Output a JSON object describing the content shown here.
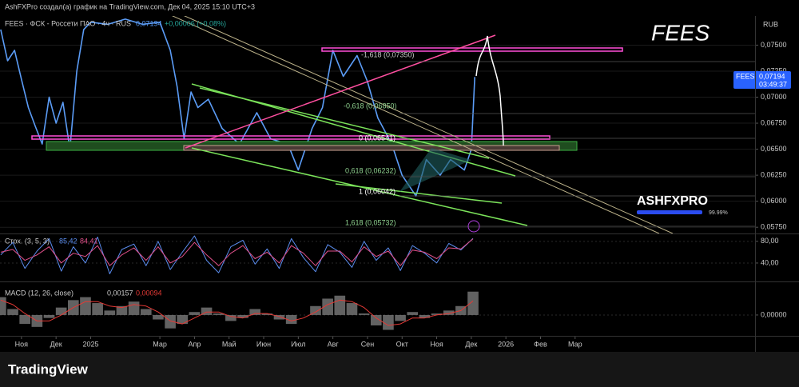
{
  "header": {
    "text": "AshFXPro создал(а) график на TradingView.com, Дек 04, 2025 15:10 UTC+3"
  },
  "chart_data": [
    {
      "type": "line",
      "title": "FEES",
      "subtitle": "FEES · ФСК - Россети ПАО · 4ч · RUS",
      "last": "0,07194",
      "change": "+0,00006 (+0,08%)",
      "currency": "RUB",
      "price_tag": {
        "countdown": "03:49:37",
        "price": "0,07194"
      },
      "fib_labels": [
        "-1,618 (0,07350)",
        "-0,618 (0,06850)",
        "0 (0,06541)",
        "0,618 (0,06232)",
        "1 (0,06042)",
        "1,618 (0,05732)"
      ],
      "watermark": {
        "logo": "ASHFXPRO",
        "percent": "99.99%"
      },
      "x": [
        -0.6,
        -0.4,
        -0.2,
        0,
        0.2,
        0.4,
        0.6,
        0.8,
        1.0,
        1.2,
        1.4,
        1.6,
        1.8,
        2.0,
        2.5,
        3.0,
        3.5,
        4.0,
        4.3,
        4.5,
        4.7,
        4.9,
        5.1,
        5.4,
        5.8,
        6.3,
        6.8,
        7.2,
        7.7,
        8.0,
        8.4,
        8.7,
        9.0,
        9.3,
        9.7,
        10.0,
        10.3,
        10.7,
        11.0,
        11.4,
        11.7,
        12.1,
        12.4,
        12.8,
        13.0,
        13.1
      ],
      "series": [
        {
          "name": "FEES",
          "color": "#5b9cf6",
          "values": [
            0.0765,
            0.0735,
            0.0745,
            0.0717,
            0.069,
            0.0672,
            0.0655,
            0.07,
            0.0675,
            0.0695,
            0.065,
            0.0725,
            0.0765,
            0.0772,
            0.077,
            0.0775,
            0.077,
            0.0772,
            0.0745,
            0.071,
            0.066,
            0.0705,
            0.069,
            0.0698,
            0.067,
            0.0655,
            0.0685,
            0.066,
            0.0655,
            0.063,
            0.067,
            0.069,
            0.0745,
            0.072,
            0.074,
            0.0715,
            0.068,
            0.0655,
            0.0625,
            0.0605,
            0.064,
            0.0625,
            0.064,
            0.063,
            0.065,
            0.07194
          ]
        }
      ],
      "xlim": [
        -0.62,
        21.2
      ],
      "xticks": [
        {
          "value": 0,
          "label": "Ноя"
        },
        {
          "value": 1,
          "label": "Дек"
        },
        {
          "value": 2,
          "label": "2025"
        },
        {
          "value": 4,
          "label": "Мар"
        },
        {
          "value": 5,
          "label": "Апр"
        },
        {
          "value": 6,
          "label": "Май"
        },
        {
          "value": 7,
          "label": "Июн"
        },
        {
          "value": 8,
          "label": "Июл"
        },
        {
          "value": 9,
          "label": "Авг"
        },
        {
          "value": 10,
          "label": "Сен"
        },
        {
          "value": 11,
          "label": "Окт"
        },
        {
          "value": 12,
          "label": "Ноя"
        },
        {
          "value": 13,
          "label": "Дек"
        },
        {
          "value": 14,
          "label": "2026"
        },
        {
          "value": 15,
          "label": "Фев"
        },
        {
          "value": 16,
          "label": "Мар"
        }
      ],
      "ylim": [
        0.0569,
        0.0778
      ],
      "yticks": [
        {
          "value": 0.0575,
          "label": "0,05750"
        },
        {
          "value": 0.06,
          "label": "0,06000"
        },
        {
          "value": 0.0625,
          "label": "0,06250"
        },
        {
          "value": 0.065,
          "label": "0,06500"
        },
        {
          "value": 0.0675,
          "label": "0,06750"
        },
        {
          "value": 0.07,
          "label": "0,07000"
        },
        {
          "value": 0.0725,
          "label": "0,07250"
        },
        {
          "value": 0.075,
          "label": "0,07500"
        }
      ],
      "grid": true
    },
    {
      "type": "line",
      "title": "Стох. (3, 5, 3)",
      "legend_values": [
        "85,42",
        "84,41"
      ],
      "x": [
        -0.6,
        -0.25,
        0.1,
        0.45,
        0.8,
        1.15,
        1.5,
        1.85,
        2.2,
        2.55,
        2.9,
        3.25,
        3.6,
        3.95,
        4.3,
        4.65,
        5,
        5.35,
        5.7,
        6.05,
        6.4,
        6.75,
        7.1,
        7.45,
        7.8,
        8.15,
        8.5,
        8.85,
        9.2,
        9.55,
        9.9,
        10.25,
        10.6,
        10.95,
        11.3,
        11.65,
        12,
        12.35,
        12.7,
        13.05
      ],
      "series": [
        {
          "color": "#5b8def",
          "values": [
            55,
            78,
            30,
            62,
            85,
            25,
            70,
            40,
            88,
            20,
            65,
            75,
            35,
            80,
            28,
            60,
            90,
            45,
            22,
            70,
            82,
            38,
            66,
            30,
            85,
            50,
            24,
            74,
            60,
            32,
            80,
            45,
            68,
            26,
            72,
            58,
            40,
            76,
            64,
            85.42
          ]
        },
        {
          "color": "#e0508a",
          "values": [
            60,
            65,
            45,
            55,
            70,
            40,
            58,
            52,
            72,
            35,
            55,
            68,
            45,
            70,
            40,
            52,
            78,
            55,
            35,
            58,
            72,
            48,
            60,
            40,
            72,
            58,
            35,
            62,
            62,
            42,
            70,
            52,
            62,
            35,
            64,
            60,
            48,
            68,
            66,
            84.41
          ]
        }
      ],
      "xlim": [
        -0.62,
        21.2
      ],
      "ylim": [
        6,
        93
      ],
      "yticks": [
        {
          "value": 80,
          "label": "80,00"
        },
        {
          "value": 40,
          "label": "40,00"
        }
      ]
    },
    {
      "type": "line",
      "title": "MACD (12, 26, close)",
      "legend_values": [
        "0,00157",
        "0,00094"
      ],
      "x": [
        -0.6,
        -0.25,
        0.1,
        0.45,
        0.8,
        1.15,
        1.5,
        1.85,
        2.2,
        2.55,
        2.9,
        3.25,
        3.6,
        3.95,
        4.3,
        4.65,
        5,
        5.35,
        5.7,
        6.05,
        6.4,
        6.75,
        7.1,
        7.45,
        7.8,
        8.15,
        8.5,
        8.85,
        9.2,
        9.55,
        9.9,
        10.25,
        10.6,
        10.95,
        11.3,
        11.65,
        12,
        12.35,
        12.7,
        13.05
      ],
      "series": [
        {
          "color": "#8c8c8c",
          "style": "histogram",
          "values": [
            0.0012,
            0.0004,
            -0.0006,
            -0.0008,
            -0.0002,
            0.0005,
            0.001,
            0.0012,
            0.0008,
            0.0003,
            0.0006,
            0.0009,
            0.0004,
            -0.0003,
            -0.0009,
            -0.0006,
            0.0002,
            0.0005,
            0.0001,
            -0.0004,
            -0.0002,
            0.0004,
            0.0001,
            -0.0003,
            -0.0006,
            0.0,
            0.0006,
            0.0011,
            0.0013,
            0.0008,
            0.0001,
            -0.0007,
            -0.001,
            -0.0004,
            0.0002,
            -0.0002,
            0.0001,
            0.0003,
            0.0006,
            0.00157
          ]
        },
        {
          "color": "#e53935",
          "values": [
            0.001,
            0.0007,
            0.0001,
            -0.0004,
            -0.0004,
            0.0,
            0.0005,
            0.0009,
            0.0009,
            0.0006,
            0.0005,
            0.0007,
            0.0006,
            0.0002,
            -0.0004,
            -0.0006,
            -0.0002,
            0.0002,
            0.0002,
            -0.0001,
            -0.0002,
            0.0001,
            0.0001,
            -0.0001,
            -0.0004,
            -0.0002,
            0.0002,
            0.0007,
            0.001,
            0.0009,
            0.0005,
            -0.0002,
            -0.0007,
            -0.0006,
            -0.0002,
            -0.0002,
            0.0,
            0.0001,
            0.0003,
            0.00094
          ]
        }
      ],
      "xlim": [
        -0.62,
        21.2
      ],
      "ylim": [
        -0.0014,
        0.0022
      ],
      "yticks": [
        {
          "value": 0,
          "label": "0,00000"
        }
      ]
    }
  ],
  "footer": {
    "brand": "TradingView"
  }
}
